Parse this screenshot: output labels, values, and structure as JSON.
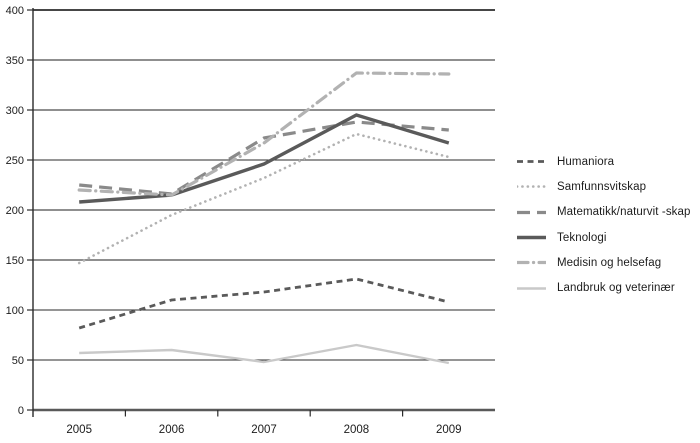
{
  "chart_data": {
    "type": "line",
    "title": "",
    "xlabel": "",
    "ylabel": "",
    "categories": [
      "2005",
      "2006",
      "2007",
      "2008",
      "2009"
    ],
    "series": [
      {
        "name": "Humaniora",
        "values": [
          82,
          110,
          118,
          131,
          108
        ],
        "color": "#5a5a5a",
        "line_style": "dashed",
        "width": 2.8
      },
      {
        "name": "Samfunnsvitskap",
        "values": [
          147,
          195,
          232,
          276,
          253
        ],
        "color": "#b2b2b2",
        "line_style": "dotted",
        "width": 2.6
      },
      {
        "name": "Matematikk/naturvit -skap",
        "values": [
          225,
          216,
          272,
          288,
          280
        ],
        "color": "#8a8a8a",
        "line_style": "long-dash",
        "width": 3.2
      },
      {
        "name": "Teknologi",
        "values": [
          208,
          215,
          246,
          295,
          267
        ],
        "color": "#5a5a5a",
        "line_style": "solid",
        "width": 3.4
      },
      {
        "name": "Medisin og helsefag",
        "values": [
          220,
          215,
          267,
          337,
          336
        ],
        "color": "#b2b2b2",
        "line_style": "dash-dot",
        "width": 3.2
      },
      {
        "name": "Landbruk og veterinær",
        "values": [
          57,
          60,
          48,
          65,
          47
        ],
        "color": "#c9c9c9",
        "line_style": "solid",
        "width": 2.4
      }
    ],
    "ylim": [
      0,
      400
    ],
    "ytick_step": 50,
    "ytick_labels": [
      "0",
      "50",
      "100",
      "150",
      "200",
      "250",
      "300",
      "350",
      "400"
    ],
    "grid": true,
    "gray_gridline_values": [
      350,
      300,
      200,
      150
    ],
    "legend_position": "right",
    "colors": {
      "grid_gray": "#8f8f8f",
      "grid_dark": "#2b2b2b",
      "axis": "#595959",
      "tick": "#2b2b2b",
      "label_text": "#1c1c1c"
    }
  }
}
